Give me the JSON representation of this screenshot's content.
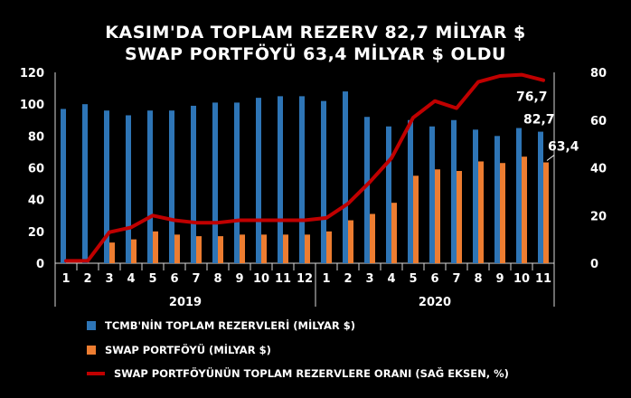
{
  "title_line_1": "KASIM'DA TOPLAM REZERV 82,7 MİLYAR $",
  "title_line_2": "SWAP PORTFÖYÜ 63,4 MİLYAR $ OLDU",
  "chart_data": {
    "type": "bar+line",
    "categories": [
      "1",
      "2",
      "3",
      "4",
      "5",
      "6",
      "7",
      "8",
      "9",
      "10",
      "11",
      "12",
      "1",
      "2",
      "3",
      "4",
      "5",
      "6",
      "7",
      "8",
      "9",
      "10",
      "11"
    ],
    "year_groups": [
      {
        "label": "2019",
        "count": 12
      },
      {
        "label": "2020",
        "count": 11
      }
    ],
    "series": [
      {
        "name": "TCMB'NİN TOPLAM REZERVLERİ (MİLYAR $)",
        "type": "bar",
        "axis": "left",
        "color": "#2e75b6",
        "values": [
          97,
          100,
          96,
          93,
          96,
          96,
          99,
          101,
          101,
          104,
          105,
          105,
          102,
          108,
          92,
          86,
          90,
          86,
          90,
          84,
          80,
          85,
          82.7
        ]
      },
      {
        "name": "SWAP PORTFÖYÜ (MİLYAR $)",
        "type": "bar",
        "axis": "left",
        "color": "#ed7d31",
        "values": [
          0,
          0,
          13,
          15,
          20,
          18,
          17,
          17,
          18,
          18,
          18,
          18,
          20,
          27,
          31,
          38,
          55,
          59,
          58,
          64,
          63,
          67,
          63.4
        ]
      },
      {
        "name": "SWAP PORTFÖYÜNÜN TOPLAM REZERVLERE ORANI (SAĞ EKSEN, %)",
        "type": "line",
        "axis": "right",
        "color": "#c00000",
        "values": [
          1,
          1,
          13,
          15,
          20,
          18,
          17,
          17,
          18,
          18,
          18,
          18,
          19,
          25,
          34,
          44,
          61,
          68,
          65,
          76,
          78.5,
          79,
          76.7
        ]
      }
    ],
    "y_left": {
      "min": 0,
      "max": 120,
      "ticks": [
        "0",
        "20",
        "40",
        "60",
        "80",
        "100",
        "120"
      ]
    },
    "y_right": {
      "min": 0,
      "max": 80,
      "ticks": [
        "0",
        "20",
        "40",
        "60",
        "80"
      ]
    },
    "data_labels": [
      {
        "series": 0,
        "index": 22,
        "text": "82,7"
      },
      {
        "series": 1,
        "index": 22,
        "text": "63,4"
      },
      {
        "series": 2,
        "index": 22,
        "text": "76,7"
      }
    ],
    "grid": false,
    "legend_position": "bottom"
  }
}
